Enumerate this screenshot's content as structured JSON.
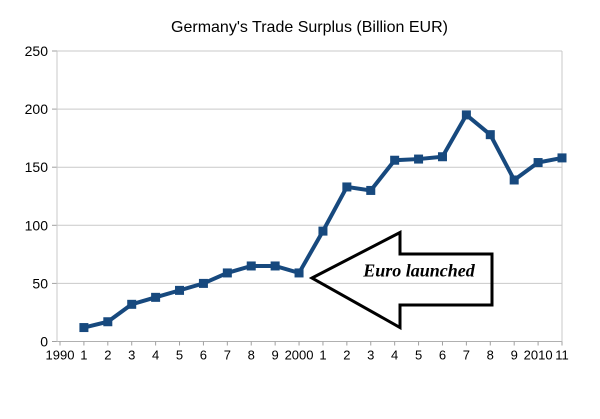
{
  "page": {
    "background_color": "#ffffff"
  },
  "chart_data": {
    "type": "line",
    "title": "Germany's Trade Surplus (Billion EUR)",
    "xlabel": "",
    "ylabel": "",
    "categories": [
      "1990",
      "1",
      "2",
      "3",
      "4",
      "5",
      "6",
      "7",
      "8",
      "9",
      "2000",
      "1",
      "2",
      "3",
      "4",
      "5",
      "6",
      "7",
      "8",
      "9",
      "2010",
      "11"
    ],
    "series": [
      {
        "name": "Trade surplus",
        "start_category_index": 1,
        "values": [
          12,
          17,
          32,
          38,
          44,
          50,
          59,
          65,
          65,
          59,
          95,
          133,
          130,
          156,
          157,
          159,
          195,
          178,
          139,
          154,
          158
        ]
      }
    ],
    "ylim": [
      0,
      250
    ],
    "y_ticks": [
      0,
      50,
      100,
      150,
      200,
      250
    ],
    "grid": true,
    "legend": "none",
    "style": {
      "line_color": "#17497E",
      "marker": "square",
      "marker_size": 9,
      "line_width": 4,
      "grid_color": "#c9c9c9",
      "axis_color": "#b0b0b0",
      "tick_color": "#a0a0a0",
      "title_color": "#000000",
      "label_color": "#000000"
    },
    "annotation": {
      "label": "Euro launched",
      "shape": "left-pointing-block-arrow",
      "fill": "transparent",
      "outline_color": "#000000",
      "points_at": {
        "category": "2000",
        "value": 59
      }
    }
  }
}
